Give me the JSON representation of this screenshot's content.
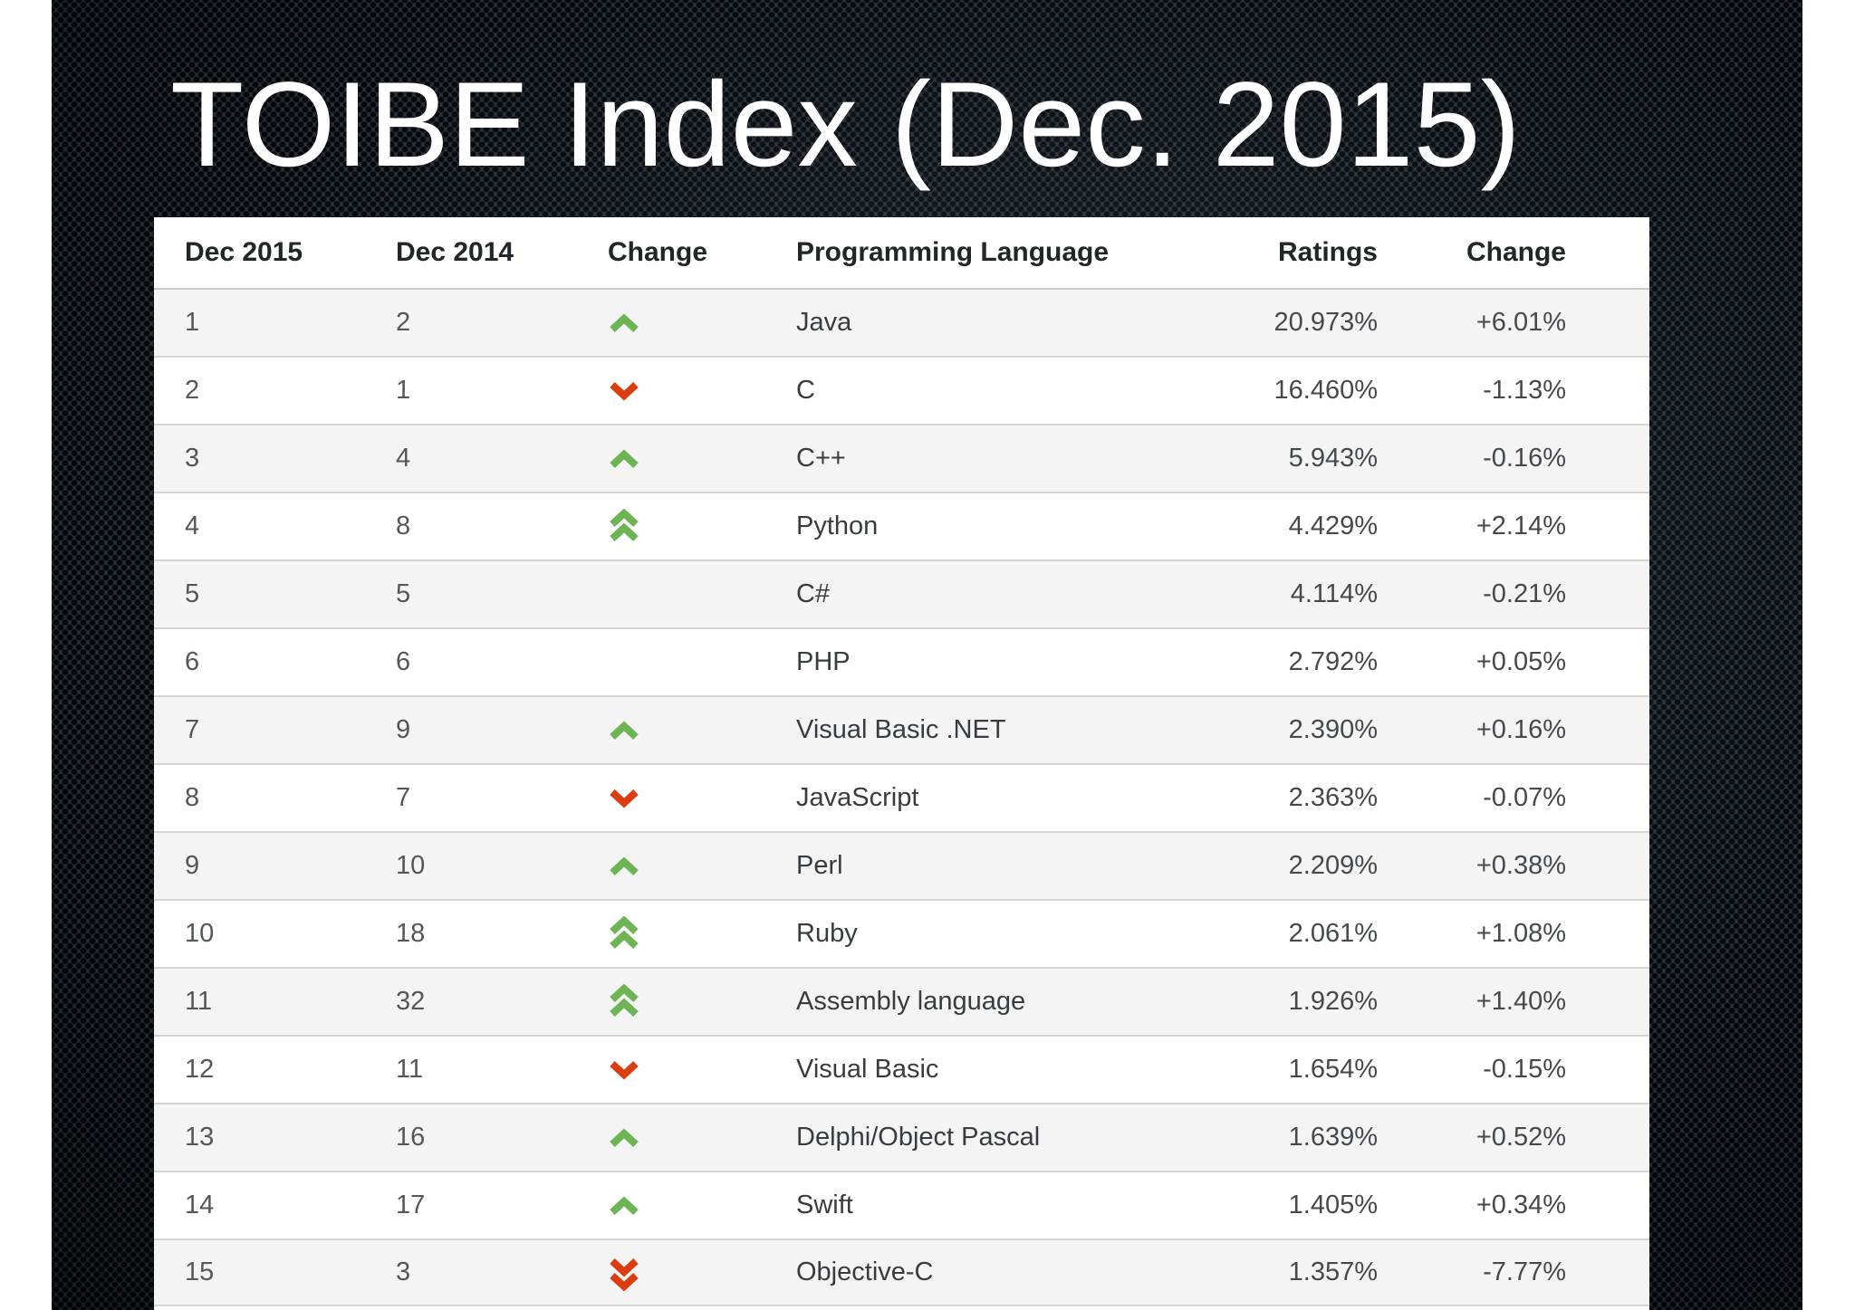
{
  "slide": {
    "title": "TOIBE Index (Dec. 2015)"
  },
  "table": {
    "headers": [
      "Dec 2015",
      "Dec 2014",
      "Change",
      "Programming Language",
      "Ratings",
      "Change"
    ],
    "rows": [
      {
        "rank": "1",
        "prev": "2",
        "change": "up",
        "language": "Java",
        "ratings": "20.973%",
        "delta": "+6.01%"
      },
      {
        "rank": "2",
        "prev": "1",
        "change": "down",
        "language": "C",
        "ratings": "16.460%",
        "delta": "-1.13%"
      },
      {
        "rank": "3",
        "prev": "4",
        "change": "up",
        "language": "C++",
        "ratings": "5.943%",
        "delta": "-0.16%"
      },
      {
        "rank": "4",
        "prev": "8",
        "change": "up2",
        "language": "Python",
        "ratings": "4.429%",
        "delta": "+2.14%"
      },
      {
        "rank": "5",
        "prev": "5",
        "change": "none",
        "language": "C#",
        "ratings": "4.114%",
        "delta": "-0.21%"
      },
      {
        "rank": "6",
        "prev": "6",
        "change": "none",
        "language": "PHP",
        "ratings": "2.792%",
        "delta": "+0.05%"
      },
      {
        "rank": "7",
        "prev": "9",
        "change": "up",
        "language": "Visual Basic .NET",
        "ratings": "2.390%",
        "delta": "+0.16%"
      },
      {
        "rank": "8",
        "prev": "7",
        "change": "down",
        "language": "JavaScript",
        "ratings": "2.363%",
        "delta": "-0.07%"
      },
      {
        "rank": "9",
        "prev": "10",
        "change": "up",
        "language": "Perl",
        "ratings": "2.209%",
        "delta": "+0.38%"
      },
      {
        "rank": "10",
        "prev": "18",
        "change": "up2",
        "language": "Ruby",
        "ratings": "2.061%",
        "delta": "+1.08%"
      },
      {
        "rank": "11",
        "prev": "32",
        "change": "up2",
        "language": "Assembly language",
        "ratings": "1.926%",
        "delta": "+1.40%"
      },
      {
        "rank": "12",
        "prev": "11",
        "change": "down",
        "language": "Visual Basic",
        "ratings": "1.654%",
        "delta": "-0.15%"
      },
      {
        "rank": "13",
        "prev": "16",
        "change": "up",
        "language": "Delphi/Object Pascal",
        "ratings": "1.639%",
        "delta": "+0.52%"
      },
      {
        "rank": "14",
        "prev": "17",
        "change": "up",
        "language": "Swift",
        "ratings": "1.405%",
        "delta": "+0.34%"
      },
      {
        "rank": "15",
        "prev": "3",
        "change": "down2",
        "language": "Objective-C",
        "ratings": "1.357%",
        "delta": "-7.77%"
      }
    ]
  },
  "icons": {
    "up": "up-arrow-icon",
    "down": "down-arrow-icon",
    "up2": "double-up-arrow-icon",
    "down2": "double-down-arrow-icon"
  },
  "colors": {
    "up_arrow": "#6db554",
    "down_arrow": "#dc3d0e",
    "row_alt_bg": "#f4f4f5",
    "row_border": "#d5d5d5",
    "slide_bg": "#2a3037",
    "title_text": "#ffffff"
  }
}
